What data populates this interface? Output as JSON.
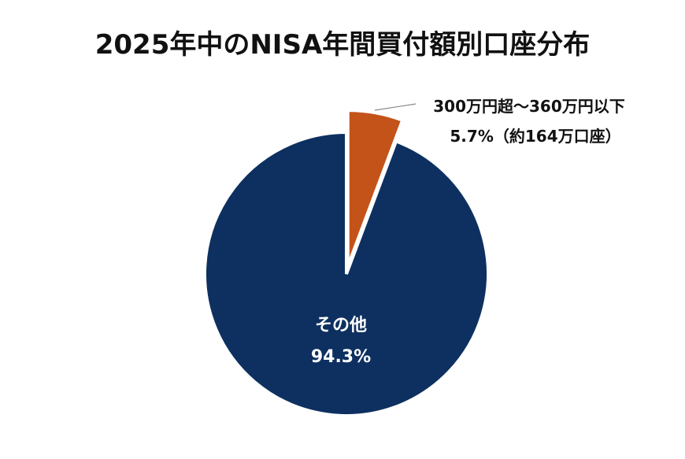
{
  "chart_data": {
    "type": "pie",
    "title": "2025年中のNISA年間買付額別口座分布",
    "series": [
      {
        "name": "その他",
        "value": 94.3,
        "percent_label": "94.3%",
        "color": "#0d3060"
      },
      {
        "name": "300万円超〜360万円以下",
        "value": 5.7,
        "percent_label": "5.7%（約164万口座）",
        "color": "#c4531a",
        "exploded": true
      }
    ]
  }
}
